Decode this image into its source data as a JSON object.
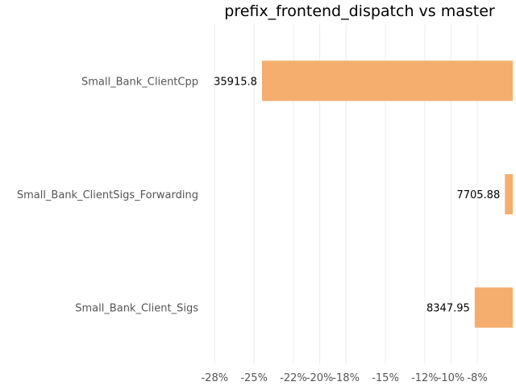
{
  "chart_data": {
    "type": "bar",
    "orientation": "horizontal",
    "title": "prefix_frontend_dispatch vs master",
    "xlabel": "",
    "ylabel": "",
    "categories": [
      "Small_Bank_ClientCpp",
      "Small_Bank_ClientSigs_Forwarding",
      "Small_Bank_Client_Sigs"
    ],
    "values": [
      -24.4,
      -5.9,
      -8.2
    ],
    "value_labels": [
      "35915.8",
      "7705.88",
      "8347.95"
    ],
    "value_unit": "%",
    "xlim": [
      -29.0,
      -5.3
    ],
    "xticks": [
      -28,
      -25,
      -22,
      -20,
      -18,
      -15,
      -12,
      -10,
      -8
    ],
    "xtick_labels": [
      "-28%",
      "-25%",
      "-22%",
      "-20%",
      "-18%",
      "-15%",
      "-12%",
      "-10%",
      "-8%"
    ],
    "grid": true,
    "legend": "none",
    "colors": {
      "bar": "#f5ae6e",
      "grid": "#ececec",
      "title": "#000000",
      "tick_text": "#555555",
      "label_text": "#000000"
    }
  }
}
